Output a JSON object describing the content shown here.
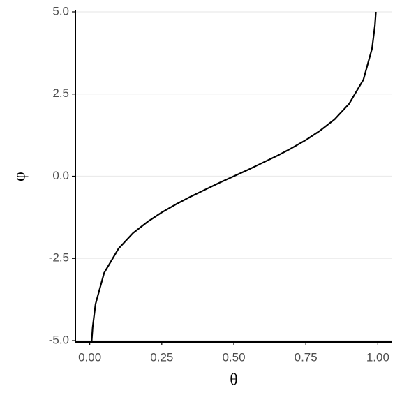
{
  "chart_data": {
    "type": "line",
    "x_label": "θ",
    "y_label": "φ",
    "x": [
      0.0067,
      0.01,
      0.02,
      0.05,
      0.1,
      0.15,
      0.2,
      0.25,
      0.3,
      0.35,
      0.4,
      0.45,
      0.5,
      0.55,
      0.6,
      0.65,
      0.7,
      0.75,
      0.8,
      0.85,
      0.9,
      0.95,
      0.98,
      0.99,
      0.9933
    ],
    "series": [
      {
        "color": "#000000",
        "values": [
          -5.0,
          -4.6,
          -3.89,
          -2.94,
          -2.2,
          -1.73,
          -1.39,
          -1.1,
          -0.85,
          -0.62,
          -0.41,
          -0.2,
          0,
          0.2,
          0.41,
          0.62,
          0.85,
          1.1,
          1.39,
          1.73,
          2.2,
          2.94,
          3.89,
          4.6,
          5.0
        ]
      }
    ],
    "xlim": [
      -0.05,
      1.05
    ],
    "ylim": [
      -5,
      5
    ],
    "xticks": [
      {
        "value": 0,
        "label": "0.00"
      },
      {
        "value": 0.25,
        "label": "0.25"
      },
      {
        "value": 0.5,
        "label": "0.50"
      },
      {
        "value": 0.75,
        "label": "0.75"
      },
      {
        "value": 1,
        "label": "1.00"
      }
    ],
    "yticks": [
      {
        "value": -5,
        "label": "-5.0"
      },
      {
        "value": -2.5,
        "label": "-2.5"
      },
      {
        "value": 0,
        "label": "0.0"
      },
      {
        "value": 2.5,
        "label": "2.5"
      },
      {
        "value": 5,
        "label": "5.0"
      }
    ],
    "grid": true
  }
}
